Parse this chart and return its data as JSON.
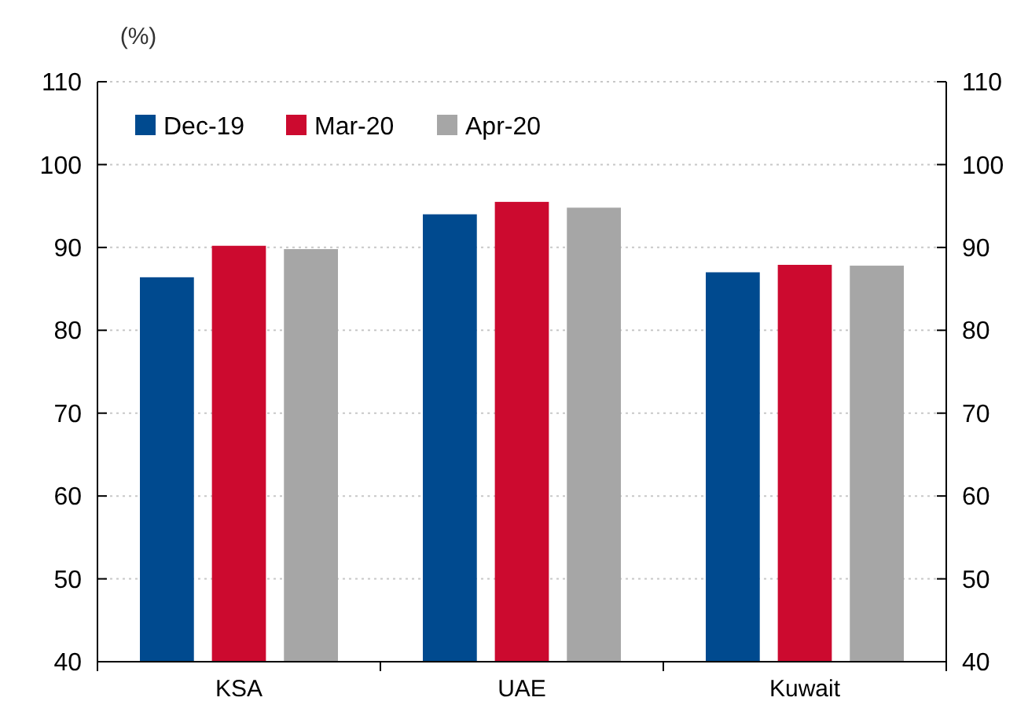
{
  "chart_data": {
    "type": "bar",
    "ylabel": "(%)",
    "categories": [
      "KSA",
      "UAE",
      "Kuwait"
    ],
    "series": [
      {
        "name": "Dec-19",
        "color": "#004a8f",
        "values": [
          86.4,
          94.0,
          87.0
        ]
      },
      {
        "name": "Mar-20",
        "color": "#cc0a2f",
        "values": [
          90.2,
          95.5,
          87.9
        ]
      },
      {
        "name": "Apr-20",
        "color": "#a6a6a6",
        "values": [
          89.8,
          94.8,
          87.8
        ]
      }
    ],
    "ylim": [
      40,
      110
    ],
    "yticks": [
      40,
      50,
      60,
      70,
      80,
      90,
      100,
      110
    ],
    "y2lim": [
      40,
      110
    ],
    "y2ticks": [
      40,
      50,
      60,
      70,
      80,
      90,
      100,
      110
    ],
    "grid": "y",
    "legend": "top left"
  }
}
